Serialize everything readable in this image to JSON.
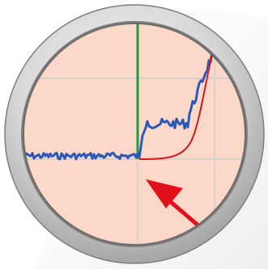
{
  "scene": {
    "description_free_labels": [],
    "colors": {
      "background_shadow": "#ebebeb",
      "bezel_outer": "#bdbdbd",
      "bezel_mid": "#e6e6e6",
      "bezel_inner": "#8a8a8a",
      "dial_face": "#fbd8c8",
      "grid": "#d9d2cc",
      "vertical_marker": "#1f9a3f",
      "noisy_trace": "#2b59b8",
      "smooth_trace": "#d6181c",
      "arrow": "#e2101a"
    },
    "icons": {
      "pointer": "arrow-icon",
      "instrument": "gauge-icon"
    }
  }
}
